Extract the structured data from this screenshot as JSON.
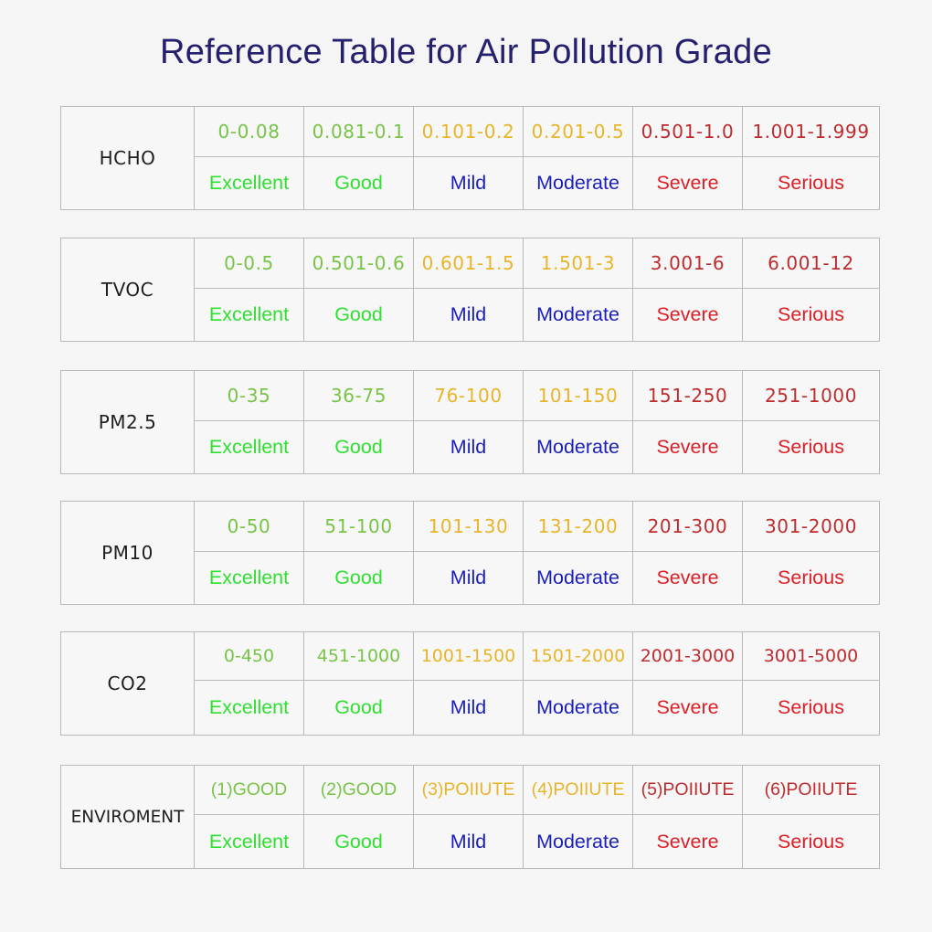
{
  "title": "Reference Table for Air Pollution Grade",
  "grade_labels": [
    "Excellent",
    "Good",
    "Mild",
    "Moderate",
    "Severe",
    "Serious"
  ],
  "colors": {
    "title": "#25206e",
    "range_good": "#78c447",
    "range_mild_moderate": "#e8b52a",
    "range_severe_serious": "#bd2c2e",
    "label_excellent_good": "#30e030",
    "label_mild_moderate": "#1a1fba",
    "label_severe_serious": "#dc1f26",
    "border": "#b9b9b9"
  },
  "tables": [
    {
      "name": "HCHO",
      "ranges": [
        "0-0.08",
        "0.081-0.1",
        "0.101-0.2",
        "0.201-0.5",
        "0.501-1.0",
        "1.001-1.999"
      ]
    },
    {
      "name": "TVOC",
      "ranges": [
        "0-0.5",
        "0.501-0.6",
        "0.601-1.5",
        "1.501-3",
        "3.001-6",
        "6.001-12"
      ]
    },
    {
      "name": "PM2.5",
      "ranges": [
        "0-35",
        "36-75",
        "76-100",
        "101-150",
        "151-250",
        "251-1000"
      ]
    },
    {
      "name": "PM10",
      "ranges": [
        "0-50",
        "51-100",
        "101-130",
        "131-200",
        "201-300",
        "301-2000"
      ]
    },
    {
      "name": "CO2",
      "ranges": [
        "0-450",
        "451-1000",
        "1001-1500",
        "1501-2000",
        "2001-3000",
        "3001-5000"
      ]
    },
    {
      "name": "ENVIROMENT",
      "ranges": [
        "(1)GOOD",
        "(2)GOOD",
        "(3)POIIUTE",
        "(4)POIIUTE",
        "(5)POIIUTE",
        "(6)POIIUTE"
      ]
    }
  ]
}
